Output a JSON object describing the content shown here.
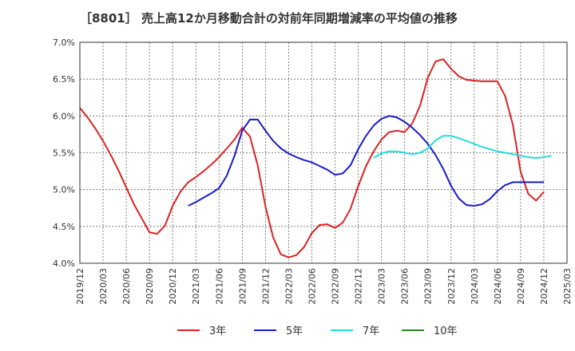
{
  "chart_data": {
    "type": "line",
    "title": "［8801］ 売上高12か月移動合計の対前年同期増減率の平均値の推移",
    "xlabel": "",
    "ylabel": "",
    "ylim": [
      4.0,
      7.0
    ],
    "y_ticks": [
      "4.0%",
      "4.5%",
      "5.0%",
      "5.5%",
      "6.0%",
      "6.5%",
      "7.0%"
    ],
    "x_ticks": [
      "2019/12",
      "2020/03",
      "2020/06",
      "2020/09",
      "2020/12",
      "2021/03",
      "2021/06",
      "2021/09",
      "2021/12",
      "2022/03",
      "2022/06",
      "2022/09",
      "2022/12",
      "2023/03",
      "2023/06",
      "2023/09",
      "2023/12",
      "2024/03",
      "2024/06",
      "2024/09",
      "2024/12",
      "2025/03"
    ],
    "grid": true,
    "legend_position": "bottom",
    "series": [
      {
        "name": "3年",
        "color": "#dd2222",
        "start": "2019/12",
        "values": [
          6.11,
          5.98,
          5.83,
          5.66,
          5.47,
          5.26,
          5.03,
          4.8,
          4.61,
          4.42,
          4.4,
          4.51,
          4.78,
          4.97,
          5.1,
          5.17,
          5.25,
          5.34,
          5.44,
          5.56,
          5.68,
          5.84,
          5.72,
          5.33,
          4.77,
          4.35,
          4.12,
          4.08,
          4.11,
          4.22,
          4.41,
          4.52,
          4.53,
          4.48,
          4.55,
          4.74,
          5.05,
          5.32,
          5.52,
          5.68,
          5.78,
          5.8,
          5.78,
          5.9,
          6.14,
          6.52,
          6.74,
          6.77,
          6.64,
          6.54,
          6.49,
          6.48,
          6.47,
          6.47,
          6.47,
          6.27,
          5.88,
          5.24,
          4.94,
          4.85,
          4.97
        ]
      },
      {
        "name": "5年",
        "color": "#1a1acc",
        "start": "2021/02",
        "values": [
          4.78,
          4.83,
          4.89,
          4.95,
          5.02,
          5.19,
          5.46,
          5.8,
          5.95,
          5.95,
          5.8,
          5.66,
          5.56,
          5.49,
          5.44,
          5.4,
          5.37,
          5.32,
          5.27,
          5.2,
          5.22,
          5.33,
          5.55,
          5.73,
          5.87,
          5.96,
          6.0,
          5.98,
          5.92,
          5.84,
          5.74,
          5.62,
          5.47,
          5.28,
          5.05,
          4.88,
          4.79,
          4.78,
          4.8,
          4.87,
          4.98,
          5.06,
          5.1,
          5.1,
          5.1,
          5.1,
          5.1
        ]
      },
      {
        "name": "7年",
        "color": "#22dddd",
        "start": "2023/02",
        "values": [
          5.43,
          5.49,
          5.52,
          5.52,
          5.5,
          5.48,
          5.5,
          5.56,
          5.67,
          5.73,
          5.73,
          5.7,
          5.66,
          5.62,
          5.58,
          5.55,
          5.52,
          5.5,
          5.48,
          5.46,
          5.44,
          5.43,
          5.44,
          5.46
        ]
      },
      {
        "name": "10年",
        "color": "#228822",
        "start": "2024/12",
        "values": []
      }
    ]
  }
}
